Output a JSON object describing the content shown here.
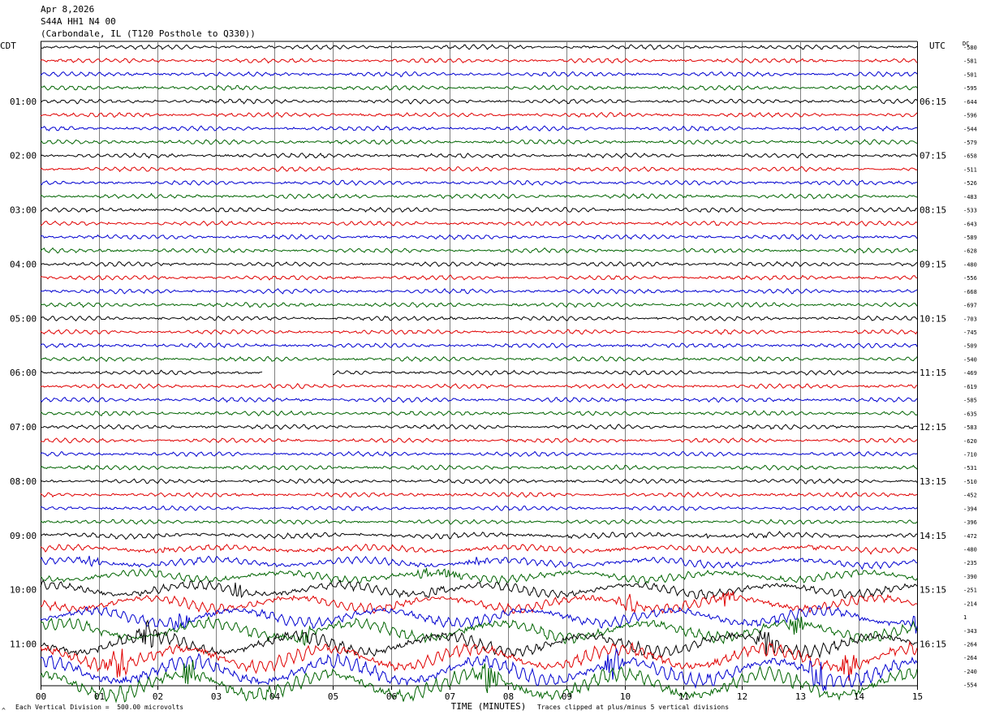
{
  "header": {
    "date": "Apr 8,2026",
    "channel": "S44A HH1 N4 00",
    "location": "(Carbondale, IL (T120 Posthole to Q330))"
  },
  "left_timezone": "CDT",
  "right_timezone": "UTC",
  "dc_label": "DC",
  "footer": {
    "scale_note": "Each Vertical Division =  500.00 microvolts",
    "clip_note": "Traces clipped at plus/minus 5 vertical divisions",
    "corner_mark": "^"
  },
  "colors": {
    "trace_cycle": [
      "#000000",
      "#e00000",
      "#0000d0",
      "#006400"
    ],
    "grid": "#808080",
    "background": "#ffffff"
  },
  "chart_data": {
    "type": "line",
    "title": "S44A HH1 N4 00",
    "xlabel": "TIME (MINUTES)",
    "ylabel": "",
    "xlim": [
      0,
      15
    ],
    "x_ticks": [
      "00",
      "01",
      "02",
      "03",
      "04",
      "05",
      "06",
      "07",
      "08",
      "09",
      "10",
      "11",
      "12",
      "13",
      "14",
      "15"
    ],
    "grid": true,
    "traces_per_hour": 4,
    "minutes_per_trace": 15,
    "left_hour_labels": [
      "01:00",
      "02:00",
      "03:00",
      "04:00",
      "05:00",
      "06:00",
      "07:00",
      "08:00",
      "09:00",
      "10:00",
      "11:00"
    ],
    "right_hour_labels": [
      "06:15",
      "07:15",
      "08:15",
      "09:15",
      "10:15",
      "11:15",
      "12:15",
      "13:15",
      "14:15",
      "15:15",
      "16:15"
    ],
    "dc_offsets": [
      -580,
      -581,
      -501,
      -595,
      -644,
      -596,
      -544,
      -579,
      -658,
      -511,
      -526,
      -483,
      -533,
      -643,
      -589,
      -628,
      -480,
      -556,
      -668,
      -697,
      -703,
      -745,
      -509,
      -540,
      -469,
      -619,
      -585,
      -635,
      -583,
      -620,
      -710,
      -531,
      -510,
      -452,
      -394,
      -396,
      -472,
      -480,
      -235,
      -390,
      -251,
      -214,
      1,
      -343,
      -264,
      -264,
      -240,
      -554
    ],
    "gap": {
      "trace_index": 24,
      "from_minute": 3.8,
      "to_minute": 5.0
    }
  }
}
